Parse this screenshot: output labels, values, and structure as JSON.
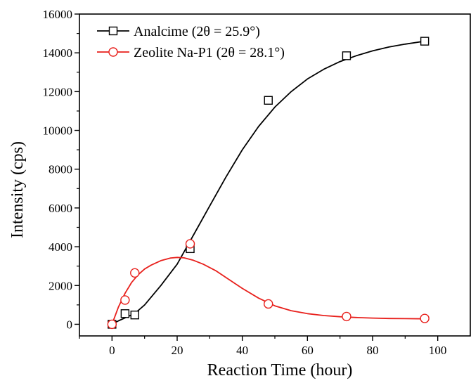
{
  "chart_data": {
    "type": "scatter",
    "xlabel": "Reaction Time (hour)",
    "ylabel": "Intensity (cps)",
    "xlim": [
      -10,
      110
    ],
    "ylim": [
      -600,
      16000
    ],
    "xticks": [
      0,
      20,
      40,
      60,
      80,
      100
    ],
    "yticks": [
      0,
      2000,
      4000,
      6000,
      8000,
      10000,
      12000,
      14000,
      16000
    ],
    "grid": false,
    "legend_position": "top-left",
    "series": [
      {
        "name": "Analcime (2θ = 25.9°)",
        "color": "#000000",
        "marker": "square",
        "x": [
          0,
          4,
          7,
          24,
          48,
          72,
          96
        ],
        "y": [
          0,
          550,
          480,
          3900,
          11550,
          13850,
          14600
        ],
        "fit": {
          "x": [
            0,
            2,
            4,
            7,
            10,
            15,
            20,
            25,
            30,
            35,
            40,
            45,
            50,
            55,
            60,
            65,
            70,
            75,
            80,
            85,
            90,
            96
          ],
          "y": [
            0,
            180,
            330,
            560,
            1000,
            2000,
            3100,
            4600,
            6100,
            7600,
            9000,
            10200,
            11200,
            12000,
            12650,
            13150,
            13550,
            13850,
            14100,
            14300,
            14450,
            14600
          ]
        }
      },
      {
        "name": "Zeolite Na-P1 (2θ = 28.1°)",
        "color": "#e8201c",
        "marker": "circle",
        "x": [
          0,
          4,
          7,
          24,
          48,
          72,
          96
        ],
        "y": [
          0,
          1250,
          2650,
          4150,
          1050,
          400,
          300
        ],
        "fit": {
          "x": [
            0,
            2,
            4,
            6,
            8,
            10,
            12,
            15,
            18,
            20,
            22,
            25,
            28,
            32,
            36,
            40,
            45,
            50,
            55,
            60,
            65,
            70,
            75,
            80,
            85,
            90,
            96
          ],
          "y": [
            0,
            900,
            1600,
            2150,
            2550,
            2850,
            3050,
            3280,
            3420,
            3450,
            3430,
            3300,
            3100,
            2750,
            2300,
            1850,
            1350,
            950,
            700,
            550,
            450,
            390,
            350,
            320,
            300,
            290,
            280
          ]
        }
      }
    ]
  }
}
